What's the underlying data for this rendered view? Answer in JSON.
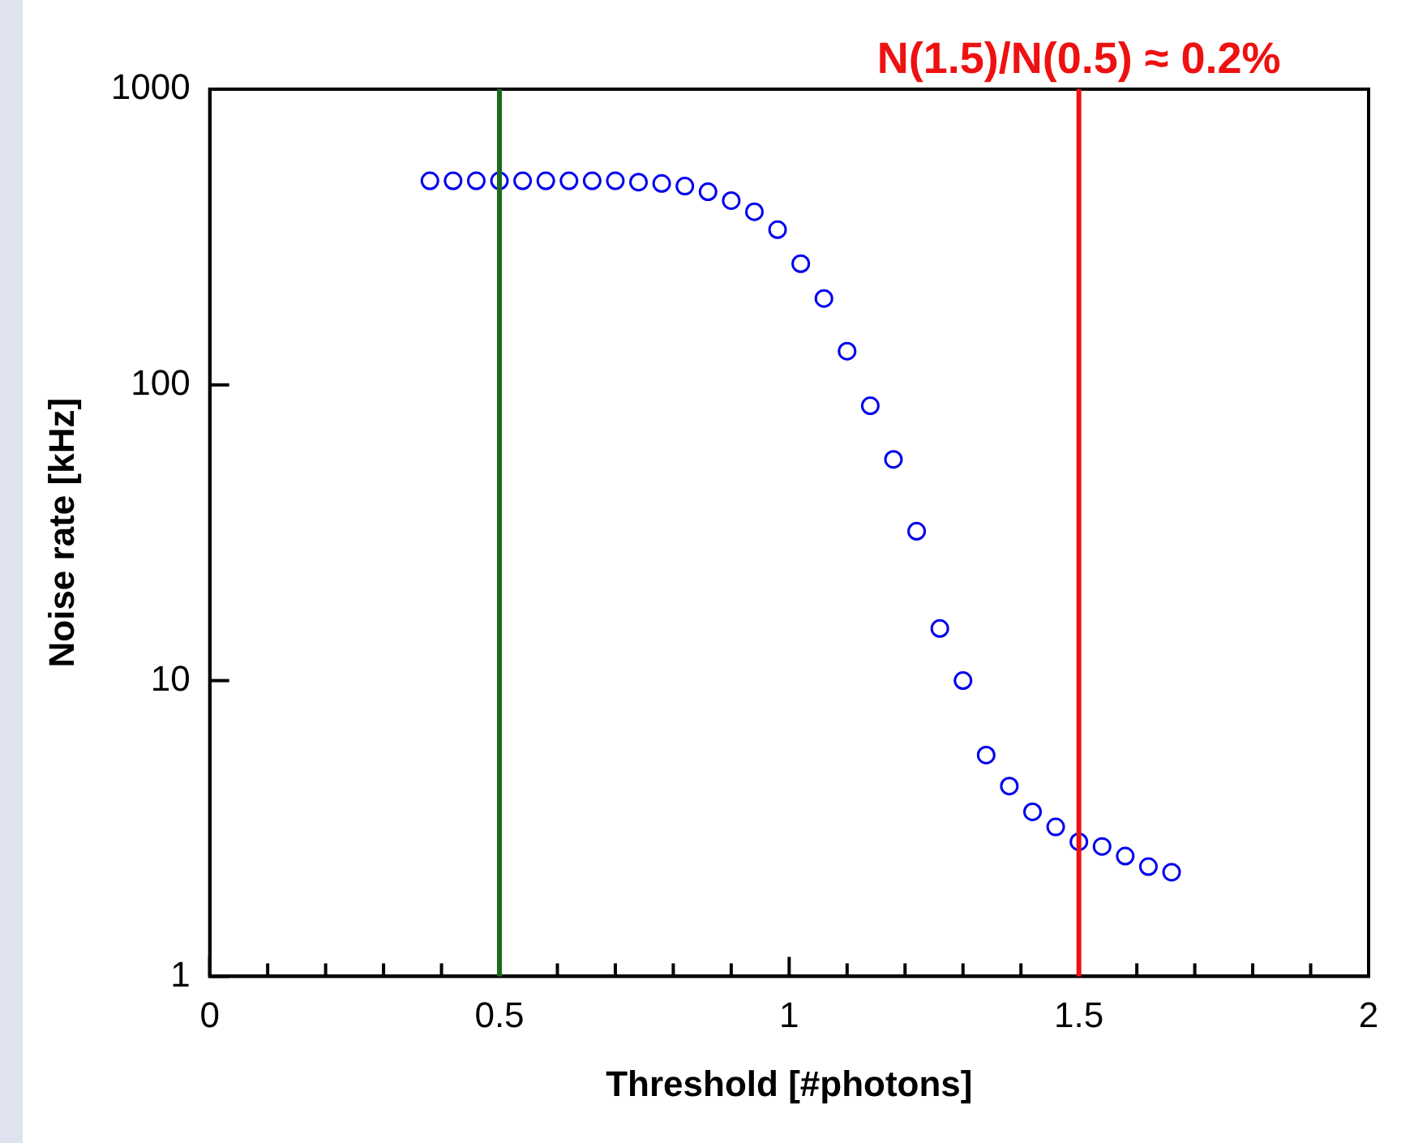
{
  "chart_data": {
    "type": "scatter",
    "xlabel": "Threshold [#photons]",
    "ylabel": "Noise rate [kHz]",
    "log": "y",
    "marker": "circle",
    "grid": false,
    "legend": false,
    "xlim": [
      0,
      2
    ],
    "ylim": [
      1,
      1000
    ],
    "xticks": [
      0,
      {
        "value": 0.1,
        "label": null
      },
      {
        "value": 0.2,
        "label": null
      },
      {
        "value": 0.3,
        "label": null
      },
      {
        "value": 0.4,
        "label": null
      },
      0.5,
      {
        "value": 0.6,
        "label": null
      },
      {
        "value": 0.7,
        "label": null
      },
      {
        "value": 0.8,
        "label": null
      },
      {
        "value": 0.9,
        "label": null
      },
      1,
      {
        "value": 1.1,
        "label": null
      },
      {
        "value": 1.2,
        "label": null
      },
      {
        "value": 1.3,
        "label": null
      },
      {
        "value": 1.4,
        "label": null
      },
      1.5,
      {
        "value": 1.6,
        "label": null
      },
      {
        "value": 1.7,
        "label": null
      },
      {
        "value": 1.8,
        "label": null
      },
      {
        "value": 1.9,
        "label": null
      },
      2
    ],
    "yticks": [
      1,
      10,
      100,
      1000
    ],
    "series": [
      {
        "color": "#0000ee",
        "x": [
          0.38,
          0.42,
          0.46,
          0.5,
          0.54,
          0.58,
          0.62,
          0.66,
          0.7,
          0.74,
          0.78,
          0.82,
          0.86,
          0.9,
          0.94,
          0.98,
          1.02,
          1.06,
          1.1,
          1.14,
          1.18,
          1.22,
          1.26,
          1.3,
          1.34,
          1.38,
          1.42,
          1.46,
          1.5,
          1.54,
          1.58,
          1.62,
          1.66
        ],
        "values": [
          490,
          490,
          490,
          490,
          490,
          490,
          490,
          490,
          490,
          485,
          480,
          470,
          450,
          420,
          385,
          335,
          257,
          196,
          130,
          85,
          56,
          32,
          15,
          10,
          5.6,
          4.4,
          3.6,
          3.2,
          2.85,
          2.75,
          2.55,
          2.35,
          2.25
        ]
      }
    ],
    "ref_lines": [
      {
        "axis": "x",
        "value": 0.5,
        "color": "#1a6b1a"
      },
      {
        "axis": "x",
        "value": 1.5,
        "color": "#ee1111",
        "label": "N(1.5)/N(0.5) ≈ 0.2%"
      }
    ]
  }
}
